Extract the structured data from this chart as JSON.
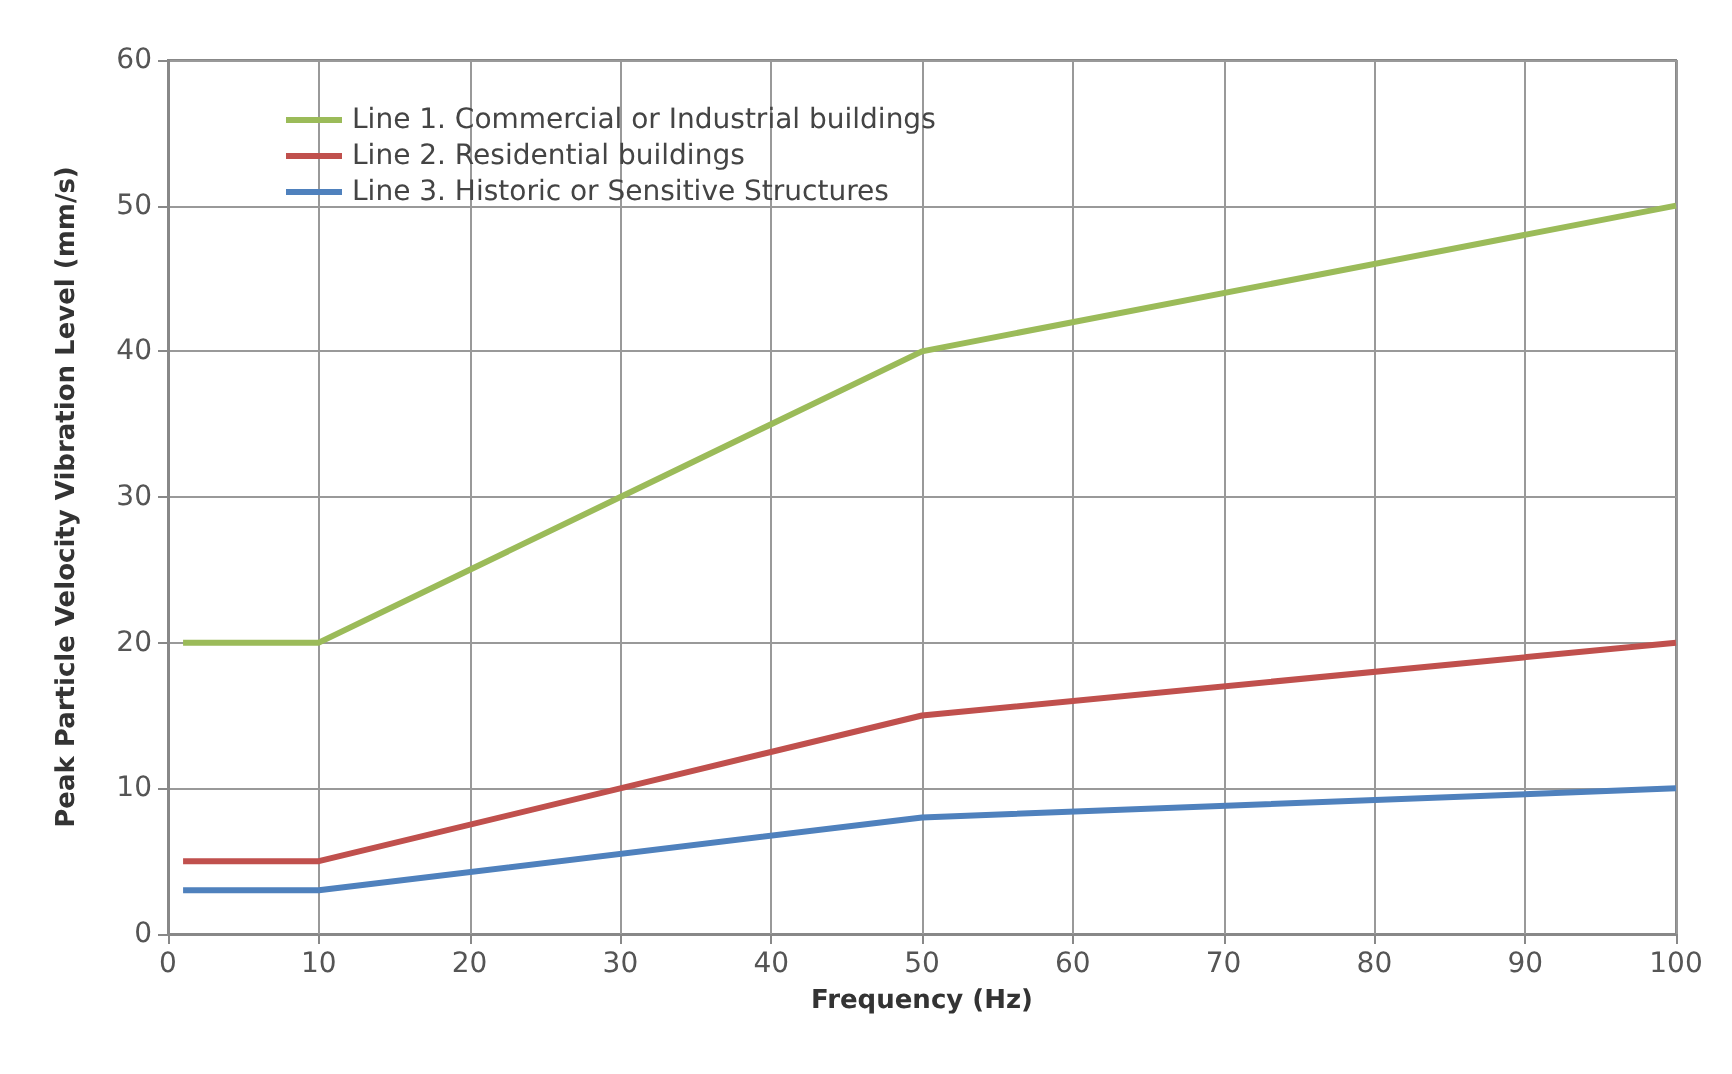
{
  "chart_data": {
    "type": "line",
    "xlabel": "Frequency (Hz)",
    "ylabel": "Peak Particle Velocity Vibration Level (mm/s)",
    "xlim": [
      0,
      100
    ],
    "xticks": [
      0,
      10,
      20,
      30,
      40,
      50,
      60,
      70,
      80,
      90,
      100
    ],
    "ylim": [
      0,
      60
    ],
    "yticks": [
      0,
      10,
      20,
      30,
      40,
      50,
      60
    ],
    "grid": true,
    "legend": "top left",
    "marker": "none",
    "line_style": "solid",
    "series": [
      {
        "name": "Line 1. Commercial or Industrial buildings",
        "color": "#9bbb59",
        "x": [
          1,
          10,
          50,
          100
        ],
        "values": [
          20,
          20,
          40,
          50
        ]
      },
      {
        "name": "Line 2. Residential buildings",
        "color": "#c0504d",
        "x": [
          1,
          10,
          50,
          100
        ],
        "values": [
          5,
          5,
          15,
          20
        ]
      },
      {
        "name": "Line 3. Historic or Sensitive Structures",
        "color": "#4f81bd",
        "x": [
          1,
          10,
          50,
          100
        ],
        "values": [
          3,
          3,
          8,
          10
        ]
      }
    ]
  }
}
